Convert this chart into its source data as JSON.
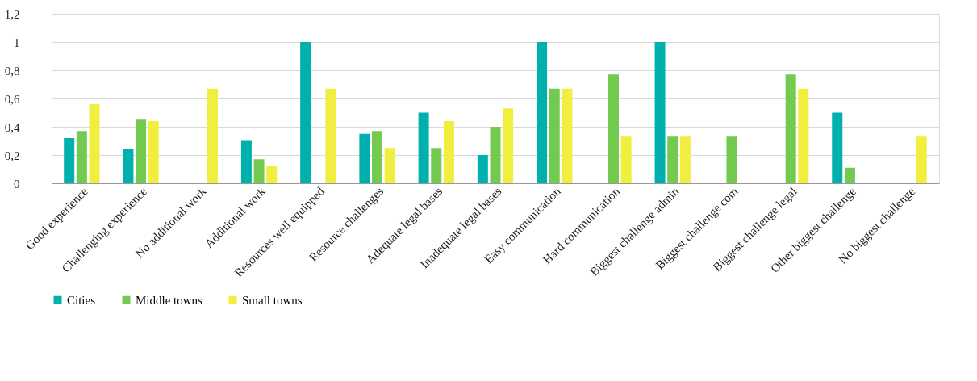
{
  "chart_data": {
    "type": "bar",
    "categories": [
      "Good experience",
      "Challenging experience",
      "No additional work",
      "Additional work",
      "Resources well equipped",
      "Resource challenges",
      "Adequate legal bases",
      "Inadequate legal bases",
      "Easy communication",
      "Hard communication",
      "Biggest challenge admin",
      "Biggest challenge com",
      "Biggest challenge legal",
      "Other biggest challenge",
      "No biggest challenge"
    ],
    "series": [
      {
        "name": "Cities",
        "color": "#00b0ad",
        "values": [
          0.32,
          0.24,
          null,
          0.3,
          1,
          0.35,
          0.5,
          0.2,
          1,
          null,
          1,
          null,
          null,
          0.5,
          null
        ]
      },
      {
        "name": "Middle towns",
        "color": "#72cb4f",
        "values": [
          0.37,
          0.45,
          null,
          0.17,
          null,
          0.37,
          0.25,
          0.4,
          0.67,
          0.77,
          0.33,
          0.33,
          0.77,
          0.11,
          null
        ]
      },
      {
        "name": "Small towns",
        "color": "#f0ef3f",
        "values": [
          0.56,
          0.44,
          0.67,
          0.12,
          0.67,
          0.25,
          0.44,
          0.53,
          0.67,
          0.33,
          0.33,
          null,
          0.67,
          null,
          0.33
        ]
      }
    ],
    "ylim": [
      0,
      1.2
    ],
    "yticks": [
      0,
      {
        "value": 0.2,
        "label": "0,2"
      },
      {
        "value": 0.4,
        "label": "0,4"
      },
      {
        "value": 0.6,
        "label": "0,6"
      },
      {
        "value": 0.8,
        "label": "0,8"
      },
      1,
      {
        "value": 1.2,
        "label": "1,2"
      }
    ],
    "grid": "y",
    "legend": "bottom"
  }
}
